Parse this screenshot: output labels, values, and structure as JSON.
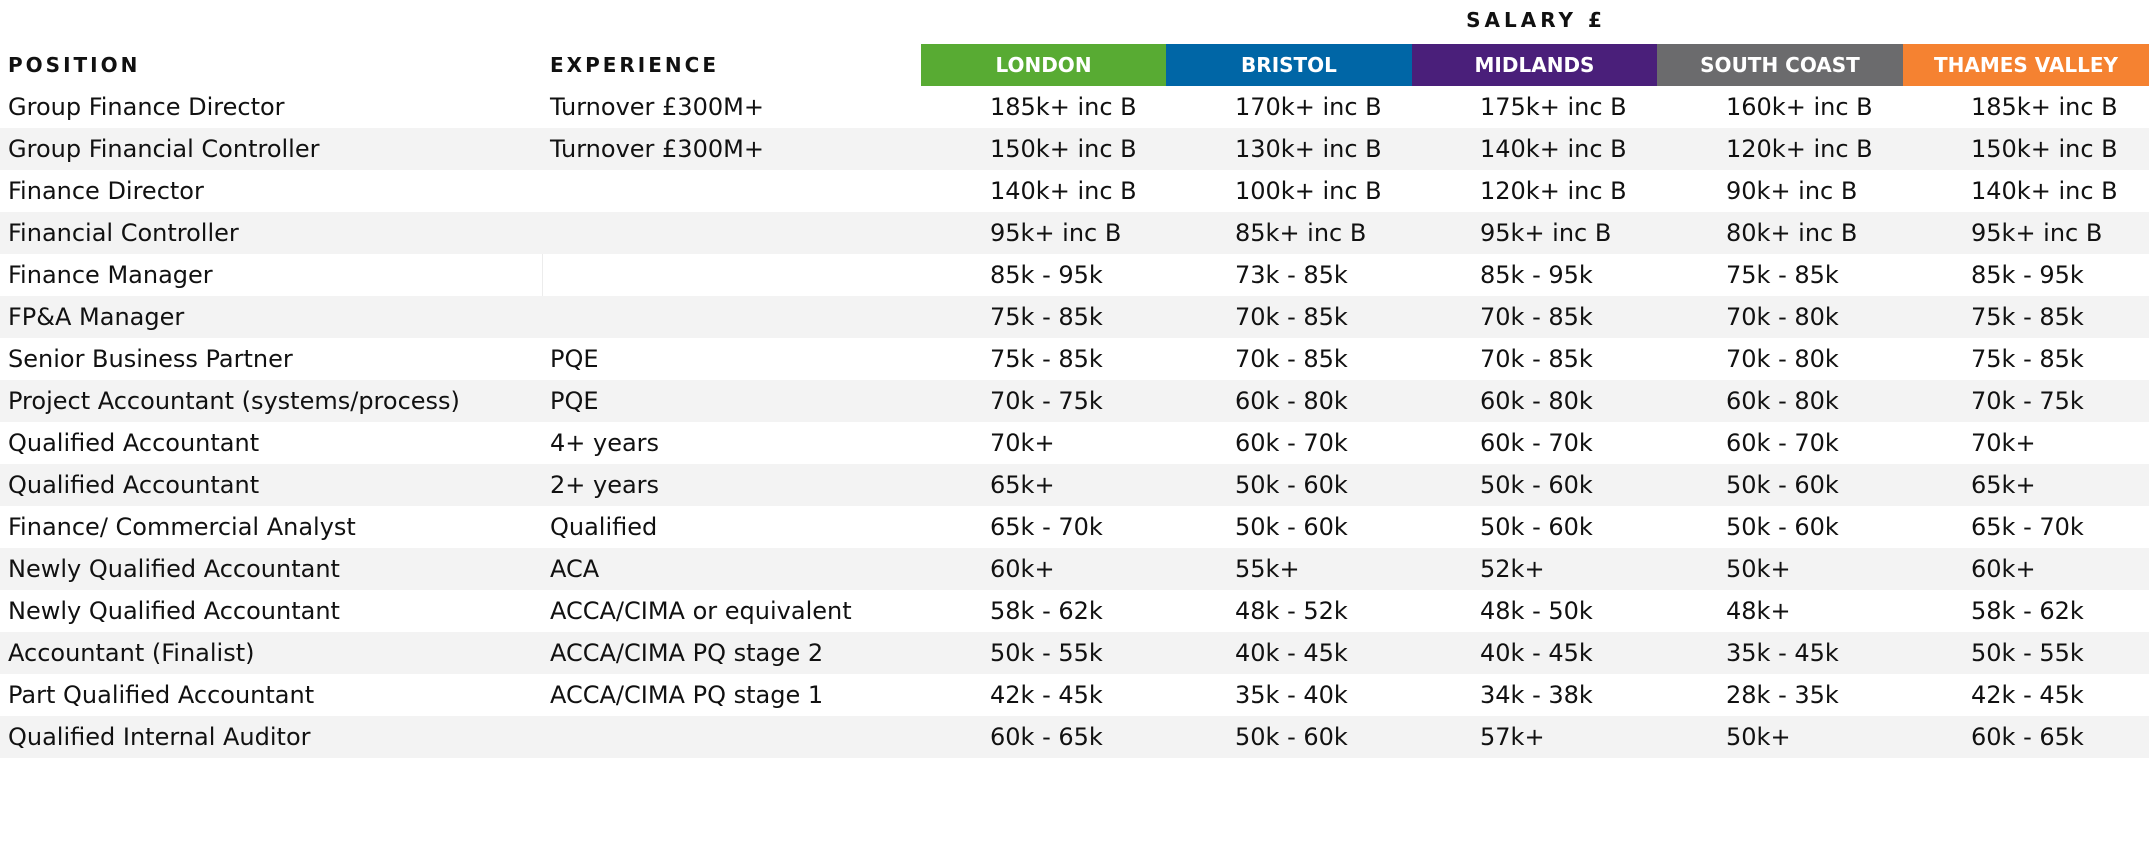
{
  "title": "SALARY £",
  "headers": {
    "position": "POSITION",
    "experience": "EXPERIENCE",
    "regions": [
      {
        "label": "LONDON",
        "color": "#58ab33"
      },
      {
        "label": "BRISTOL",
        "color": "#0066a6"
      },
      {
        "label": "MIDLANDS",
        "color": "#4a1f7a"
      },
      {
        "label": "SOUTH COAST",
        "color": "#6b6b6d"
      },
      {
        "label": "THAMES VALLEY",
        "color": "#f58231"
      }
    ]
  },
  "rows": [
    {
      "position": "Group Finance Director",
      "experience": "Turnover £300M+",
      "salaries": [
        "185k+ inc B",
        "170k+ inc B",
        "175k+ inc B",
        "160k+ inc B",
        "185k+ inc B"
      ]
    },
    {
      "position": "Group Financial Controller",
      "experience": "Turnover £300M+",
      "salaries": [
        "150k+ inc B",
        "130k+ inc B",
        "140k+ inc B",
        "120k+ inc B",
        "150k+ inc B"
      ]
    },
    {
      "position": "Finance Director",
      "experience": "",
      "salaries": [
        "140k+ inc B",
        "100k+ inc B",
        "120k+ inc B",
        "90k+ inc B",
        "140k+ inc B"
      ]
    },
    {
      "position": "Financial Controller",
      "experience": "",
      "salaries": [
        "95k+ inc B",
        "85k+ inc B",
        "95k+ inc B",
        "80k+ inc B",
        "95k+ inc B"
      ]
    },
    {
      "position": "Finance Manager",
      "experience": "",
      "salaries": [
        "85k - 95k",
        "73k - 85k",
        "85k - 95k",
        "75k - 85k",
        "85k - 95k"
      ]
    },
    {
      "position": "FP&A Manager",
      "experience": "",
      "salaries": [
        "75k - 85k",
        "70k - 85k",
        "70k - 85k",
        "70k - 80k",
        "75k - 85k"
      ]
    },
    {
      "position": "Senior Business Partner",
      "experience": "PQE",
      "salaries": [
        "75k - 85k",
        "70k - 85k",
        "70k - 85k",
        "70k - 80k",
        "75k - 85k"
      ]
    },
    {
      "position": "Project Accountant (systems/process)",
      "experience": "PQE",
      "salaries": [
        "70k - 75k",
        "60k - 80k",
        "60k - 80k",
        "60k - 80k",
        "70k - 75k"
      ]
    },
    {
      "position": "Qualified Accountant",
      "experience": "4+ years",
      "salaries": [
        "70k+",
        "60k - 70k",
        "60k - 70k",
        "60k - 70k",
        "70k+"
      ]
    },
    {
      "position": "Qualified Accountant",
      "experience": "2+ years",
      "salaries": [
        "65k+",
        "50k - 60k",
        "50k - 60k",
        "50k - 60k",
        "65k+"
      ]
    },
    {
      "position": "Finance/ Commercial Analyst",
      "experience": "Qualified",
      "salaries": [
        "65k - 70k",
        "50k - 60k",
        "50k - 60k",
        "50k - 60k",
        "65k - 70k"
      ]
    },
    {
      "position": "Newly Qualified Accountant",
      "experience": "ACA",
      "salaries": [
        "60k+",
        "55k+",
        "52k+",
        "50k+",
        "60k+"
      ]
    },
    {
      "position": "Newly Qualified Accountant",
      "experience": "ACCA/CIMA or equivalent",
      "salaries": [
        "58k - 62k",
        "48k - 52k",
        "48k - 50k",
        "48k+",
        "58k - 62k"
      ]
    },
    {
      "position": "Accountant (Finalist)",
      "experience": "ACCA/CIMA PQ stage 2",
      "salaries": [
        "50k - 55k",
        "40k - 45k",
        "40k - 45k",
        "35k - 45k",
        "50k - 55k"
      ]
    },
    {
      "position": "Part Qualified Accountant",
      "experience": "ACCA/CIMA PQ stage 1",
      "salaries": [
        "42k - 45k",
        "35k - 40k",
        "34k - 38k",
        "28k - 35k",
        "42k - 45k"
      ]
    },
    {
      "position": "Qualified Internal Auditor",
      "experience": "",
      "salaries": [
        "60k - 65k",
        "50k - 60k",
        "57k+",
        "50k+",
        "60k - 65k"
      ]
    }
  ]
}
